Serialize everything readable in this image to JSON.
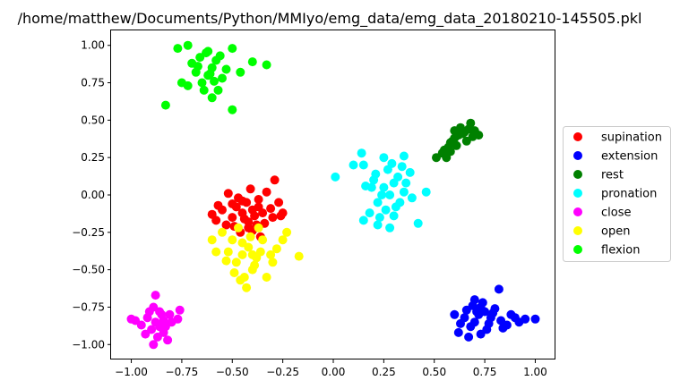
{
  "chart_data": {
    "type": "scatter",
    "title": "/home/matthew/Documents/Python/MMIyo/emg_data/emg_data_20180210-145505.pkl",
    "xlabel": "",
    "ylabel": "",
    "xlim": [
      -1.1,
      1.1
    ],
    "ylim": [
      -1.1,
      1.1
    ],
    "xticks": [
      -1.0,
      -0.75,
      -0.5,
      -0.25,
      0.0,
      0.25,
      0.5,
      0.75,
      1.0
    ],
    "xtick_labels": [
      "−1.00",
      "−0.75",
      "−0.50",
      "−0.25",
      "0.00",
      "0.25",
      "0.50",
      "0.75",
      "1.00"
    ],
    "yticks": [
      -1.0,
      -0.75,
      -0.5,
      -0.25,
      0.0,
      0.25,
      0.5,
      0.75,
      1.0
    ],
    "ytick_labels": [
      "−1.00",
      "−0.75",
      "−0.50",
      "−0.25",
      "0.00",
      "0.25",
      "0.50",
      "0.75",
      "1.00"
    ],
    "grid": false,
    "legend_position": "right-outside",
    "series": [
      {
        "name": "supination",
        "color": "#ff0000",
        "points": [
          [
            -0.45,
            -0.12
          ],
          [
            -0.4,
            -0.1
          ],
          [
            -0.5,
            -0.15
          ],
          [
            -0.38,
            -0.2
          ],
          [
            -0.43,
            -0.05
          ],
          [
            -0.48,
            -0.08
          ],
          [
            -0.35,
            -0.12
          ],
          [
            -0.42,
            -0.18
          ],
          [
            -0.55,
            -0.1
          ],
          [
            -0.3,
            -0.15
          ],
          [
            -0.33,
            0.02
          ],
          [
            -0.29,
            0.1
          ],
          [
            -0.52,
            0.01
          ],
          [
            -0.57,
            -0.07
          ],
          [
            -0.6,
            -0.13
          ],
          [
            -0.25,
            -0.12
          ],
          [
            -0.27,
            -0.05
          ],
          [
            -0.46,
            -0.25
          ],
          [
            -0.4,
            -0.24
          ],
          [
            -0.36,
            -0.28
          ],
          [
            -0.41,
            0.04
          ],
          [
            -0.47,
            -0.02
          ],
          [
            -0.37,
            -0.08
          ],
          [
            -0.44,
            -0.16
          ],
          [
            -0.39,
            -0.14
          ],
          [
            -0.31,
            -0.09
          ],
          [
            -0.53,
            -0.2
          ],
          [
            -0.49,
            -0.21
          ],
          [
            -0.34,
            -0.19
          ],
          [
            -0.26,
            -0.14
          ],
          [
            -0.58,
            -0.17
          ],
          [
            -0.45,
            -0.04
          ],
          [
            -0.42,
            -0.22
          ],
          [
            -0.37,
            -0.03
          ],
          [
            -0.5,
            -0.06
          ]
        ]
      },
      {
        "name": "extension",
        "color": "#0000ff",
        "points": [
          [
            0.72,
            -0.8
          ],
          [
            0.75,
            -0.78
          ],
          [
            0.7,
            -0.85
          ],
          [
            0.78,
            -0.82
          ],
          [
            0.73,
            -0.75
          ],
          [
            0.68,
            -0.88
          ],
          [
            0.8,
            -0.76
          ],
          [
            0.76,
            -0.9
          ],
          [
            0.65,
            -0.82
          ],
          [
            0.83,
            -0.84
          ],
          [
            0.62,
            -0.92
          ],
          [
            0.67,
            -0.95
          ],
          [
            0.82,
            -0.63
          ],
          [
            0.7,
            -0.7
          ],
          [
            0.88,
            -0.8
          ],
          [
            0.92,
            -0.85
          ],
          [
            0.95,
            -0.83
          ],
          [
            1.0,
            -0.83
          ],
          [
            0.6,
            -0.8
          ],
          [
            0.74,
            -0.72
          ],
          [
            0.77,
            -0.86
          ],
          [
            0.71,
            -0.78
          ],
          [
            0.79,
            -0.79
          ],
          [
            0.86,
            -0.87
          ],
          [
            0.63,
            -0.86
          ],
          [
            0.69,
            -0.74
          ],
          [
            0.84,
            -0.89
          ],
          [
            0.9,
            -0.82
          ],
          [
            0.73,
            -0.93
          ],
          [
            0.66,
            -0.77
          ]
        ]
      },
      {
        "name": "rest",
        "color": "#008000",
        "points": [
          [
            0.55,
            0.3
          ],
          [
            0.58,
            0.35
          ],
          [
            0.62,
            0.4
          ],
          [
            0.65,
            0.42
          ],
          [
            0.6,
            0.38
          ],
          [
            0.57,
            0.32
          ],
          [
            0.63,
            0.45
          ],
          [
            0.68,
            0.48
          ],
          [
            0.54,
            0.28
          ],
          [
            0.59,
            0.36
          ],
          [
            0.66,
            0.36
          ],
          [
            0.7,
            0.43
          ],
          [
            0.69,
            0.39
          ],
          [
            0.61,
            0.33
          ],
          [
            0.56,
            0.25
          ],
          [
            0.51,
            0.25
          ],
          [
            0.64,
            0.41
          ],
          [
            0.67,
            0.44
          ],
          [
            0.72,
            0.4
          ],
          [
            0.6,
            0.43
          ],
          [
            0.58,
            0.29
          ]
        ]
      },
      {
        "name": "pronation",
        "color": "#00ffff",
        "points": [
          [
            0.25,
            0.05
          ],
          [
            0.28,
            0.0
          ],
          [
            0.3,
            0.08
          ],
          [
            0.22,
            -0.05
          ],
          [
            0.32,
            0.12
          ],
          [
            0.26,
            -0.1
          ],
          [
            0.35,
            0.02
          ],
          [
            0.2,
            0.1
          ],
          [
            0.18,
            -0.12
          ],
          [
            0.38,
            0.15
          ],
          [
            0.15,
            0.2
          ],
          [
            0.1,
            0.2
          ],
          [
            0.01,
            0.12
          ],
          [
            0.15,
            -0.17
          ],
          [
            0.22,
            -0.2
          ],
          [
            0.28,
            -0.22
          ],
          [
            0.42,
            -0.19
          ],
          [
            0.46,
            0.02
          ],
          [
            0.35,
            0.26
          ],
          [
            0.25,
            0.25
          ],
          [
            0.14,
            0.28
          ],
          [
            0.3,
            -0.14
          ],
          [
            0.27,
            0.17
          ],
          [
            0.33,
            -0.05
          ],
          [
            0.24,
            0.0
          ],
          [
            0.19,
            0.05
          ],
          [
            0.31,
            -0.08
          ],
          [
            0.36,
            0.08
          ],
          [
            0.21,
            0.14
          ],
          [
            0.29,
            0.21
          ],
          [
            0.16,
            0.06
          ],
          [
            0.39,
            -0.02
          ],
          [
            0.23,
            -0.15
          ],
          [
            0.34,
            0.19
          ]
        ]
      },
      {
        "name": "close",
        "color": "#ff00ff",
        "points": [
          [
            -0.88,
            -0.85
          ],
          [
            -0.85,
            -0.8
          ],
          [
            -0.9,
            -0.9
          ],
          [
            -0.83,
            -0.88
          ],
          [
            -0.92,
            -0.82
          ],
          [
            -0.87,
            -0.95
          ],
          [
            -0.8,
            -0.85
          ],
          [
            -0.95,
            -0.87
          ],
          [
            -0.86,
            -0.78
          ],
          [
            -0.89,
            -1.0
          ],
          [
            -0.82,
            -0.97
          ],
          [
            -1.0,
            -0.83
          ],
          [
            -0.98,
            -0.84
          ],
          [
            -0.76,
            -0.77
          ],
          [
            -0.77,
            -0.83
          ],
          [
            -0.88,
            -0.67
          ],
          [
            -0.84,
            -0.92
          ],
          [
            -0.91,
            -0.78
          ],
          [
            -0.86,
            -0.88
          ],
          [
            -0.93,
            -0.93
          ],
          [
            -0.81,
            -0.8
          ],
          [
            -0.89,
            -0.75
          ],
          [
            -0.84,
            -0.84
          ]
        ]
      },
      {
        "name": "open",
        "color": "#ffff00",
        "points": [
          [
            -0.45,
            -0.4
          ],
          [
            -0.42,
            -0.35
          ],
          [
            -0.48,
            -0.45
          ],
          [
            -0.4,
            -0.5
          ],
          [
            -0.5,
            -0.3
          ],
          [
            -0.38,
            -0.42
          ],
          [
            -0.44,
            -0.55
          ],
          [
            -0.52,
            -0.38
          ],
          [
            -0.35,
            -0.3
          ],
          [
            -0.55,
            -0.25
          ],
          [
            -0.6,
            -0.3
          ],
          [
            -0.58,
            -0.38
          ],
          [
            -0.43,
            -0.62
          ],
          [
            -0.46,
            -0.57
          ],
          [
            -0.33,
            -0.55
          ],
          [
            -0.3,
            -0.45
          ],
          [
            -0.28,
            -0.36
          ],
          [
            -0.25,
            -0.3
          ],
          [
            -0.17,
            -0.41
          ],
          [
            -0.23,
            -0.25
          ],
          [
            -0.37,
            -0.22
          ],
          [
            -0.47,
            -0.22
          ],
          [
            -0.41,
            -0.28
          ],
          [
            -0.39,
            -0.47
          ],
          [
            -0.49,
            -0.52
          ],
          [
            -0.36,
            -0.38
          ],
          [
            -0.53,
            -0.44
          ],
          [
            -0.31,
            -0.4
          ],
          [
            -0.45,
            -0.32
          ],
          [
            -0.4,
            -0.4
          ]
        ]
      },
      {
        "name": "flexion",
        "color": "#00ff00",
        "points": [
          [
            -0.62,
            0.8
          ],
          [
            -0.6,
            0.85
          ],
          [
            -0.65,
            0.75
          ],
          [
            -0.58,
            0.9
          ],
          [
            -0.68,
            0.82
          ],
          [
            -0.55,
            0.78
          ],
          [
            -0.63,
            0.95
          ],
          [
            -0.7,
            0.88
          ],
          [
            -0.57,
            0.7
          ],
          [
            -0.72,
            0.73
          ],
          [
            -0.75,
            0.75
          ],
          [
            -0.77,
            0.98
          ],
          [
            -0.72,
            1.0
          ],
          [
            -0.62,
            0.96
          ],
          [
            -0.5,
            0.98
          ],
          [
            -0.46,
            0.82
          ],
          [
            -0.4,
            0.89
          ],
          [
            -0.33,
            0.87
          ],
          [
            -0.5,
            0.57
          ],
          [
            -0.83,
            0.6
          ],
          [
            -0.6,
            0.65
          ],
          [
            -0.66,
            0.92
          ],
          [
            -0.53,
            0.84
          ],
          [
            -0.64,
            0.7
          ],
          [
            -0.59,
            0.76
          ],
          [
            -0.67,
            0.86
          ],
          [
            -0.56,
            0.93
          ],
          [
            -0.61,
            0.81
          ]
        ]
      }
    ]
  }
}
